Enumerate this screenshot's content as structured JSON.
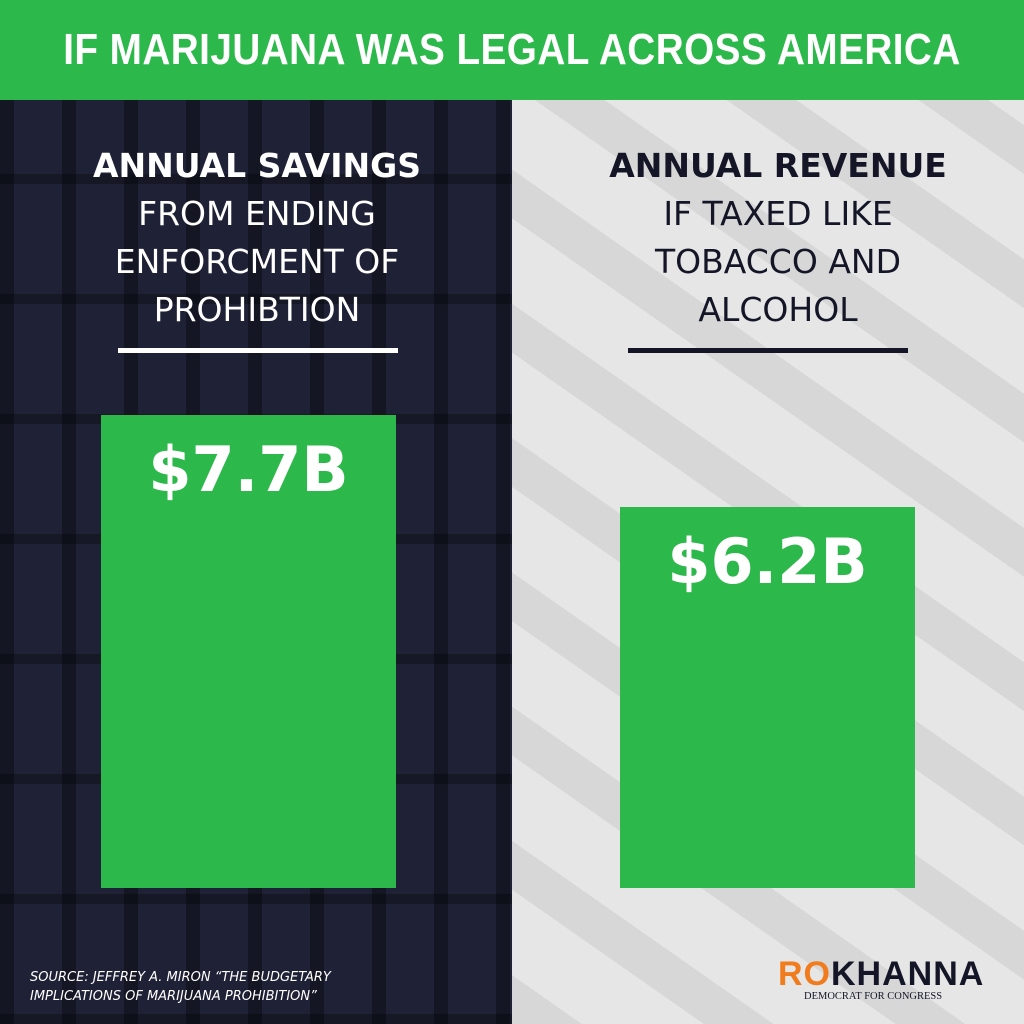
{
  "chart_data": {
    "type": "bar",
    "title": "IF MARIJUANA WAS LEGAL ACROSS AMERICA",
    "categories": [
      "ANNUAL SAVINGS",
      "ANNUAL REVENUE"
    ],
    "category_subtitles": [
      "FROM ENDING ENFORCMENT OF PROHIBTION",
      "IF TAXED LIKE TOBACCO AND ALCOHOL"
    ],
    "values": [
      7.7,
      6.2
    ],
    "value_labels": [
      "$7.7B",
      "$6.2B"
    ],
    "color": "#2db84b",
    "source": "SOURCE: JEFFREY A. MIRON “THE BUDGETARY IMPLICATIONS OF MARIJUANA PROHIBITION”",
    "brand": {
      "first": "RO",
      "last": "KHANNA",
      "tagline": "DEMOCRAT FOR CONGRESS"
    }
  }
}
